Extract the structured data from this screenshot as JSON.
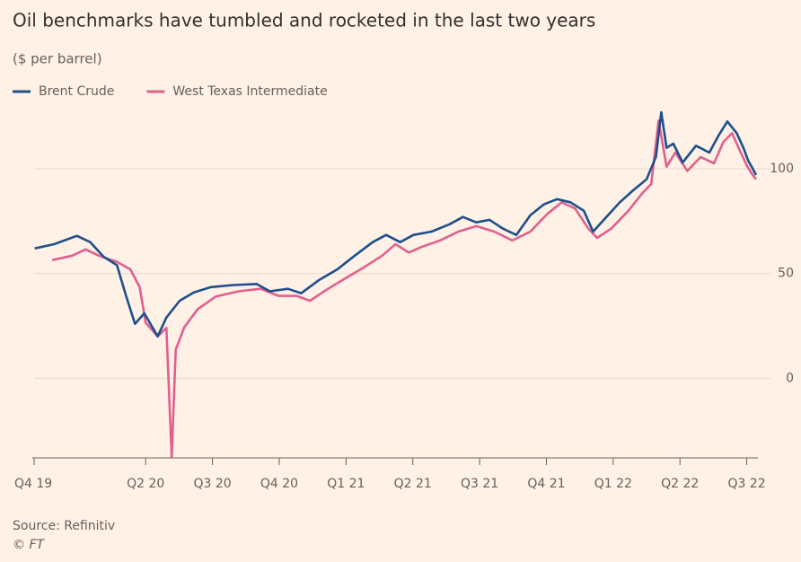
{
  "chart_data": {
    "type": "line",
    "title": "Oil benchmarks have tumbled and rocketed in the last two years",
    "subtitle": "($ per barrel)",
    "source": "Source: Refinitiv",
    "credit": "© FT",
    "xlim": [
      0.33,
      11.14
    ],
    "xticks": [
      {
        "value": 0.33,
        "label": "Q4 19"
      },
      {
        "value": 2,
        "label": "Q2 20"
      },
      {
        "value": 3,
        "label": "Q3 20"
      },
      {
        "value": 4,
        "label": "Q4 20"
      },
      {
        "value": 5,
        "label": "Q1 21"
      },
      {
        "value": 6,
        "label": "Q2 21"
      },
      {
        "value": 7,
        "label": "Q3 21"
      },
      {
        "value": 8,
        "label": "Q4 21"
      },
      {
        "value": 9,
        "label": "Q1 22"
      },
      {
        "value": 10,
        "label": "Q2 22"
      },
      {
        "value": 11,
        "label": "Q3 22"
      }
    ],
    "ylim": [
      -38,
      130
    ],
    "yticks": [
      0,
      50,
      100
    ],
    "grid": true,
    "series": [
      {
        "name": "Brent Crude",
        "color": "#1e4f8c",
        "x": [
          0.34,
          0.63,
          0.97,
          1.17,
          1.37,
          1.57,
          1.71,
          1.84,
          1.98,
          2.18,
          2.31,
          2.51,
          2.72,
          2.98,
          3.32,
          3.66,
          3.86,
          4.13,
          4.33,
          4.6,
          4.87,
          5.13,
          5.4,
          5.6,
          5.81,
          6.01,
          6.28,
          6.55,
          6.75,
          6.95,
          7.15,
          7.35,
          7.55,
          7.76,
          7.96,
          8.16,
          8.36,
          8.56,
          8.7,
          8.86,
          9.1,
          9.3,
          9.5,
          9.64,
          9.72,
          9.8,
          9.9,
          10.04,
          10.24,
          10.44,
          10.58,
          10.71,
          10.85,
          10.95,
          11.02,
          11.09,
          11.14
        ],
        "values": [
          62,
          64,
          68,
          65,
          58,
          54,
          39,
          26,
          31,
          20,
          29,
          37,
          41,
          43.5,
          44.5,
          45,
          41.5,
          42.7,
          40.6,
          47,
          52,
          58.5,
          65,
          68.4,
          65,
          68.4,
          70,
          73.5,
          77,
          74.4,
          75.6,
          71.4,
          68.4,
          77.8,
          83,
          85.5,
          84,
          80,
          70,
          75.6,
          84,
          89.7,
          95,
          105.6,
          127,
          110,
          112,
          103,
          111,
          107.7,
          116,
          122.6,
          117,
          110,
          104,
          100,
          97
        ]
      },
      {
        "name": "West Texas Intermediate",
        "color": "#e0608f",
        "x": [
          0.6,
          0.9,
          1.1,
          1.3,
          1.57,
          1.77,
          1.91,
          2.0,
          2.18,
          2.31,
          2.39,
          2.45,
          2.58,
          2.78,
          3.05,
          3.39,
          3.72,
          3.99,
          4.26,
          4.46,
          4.73,
          5.0,
          5.27,
          5.54,
          5.74,
          5.94,
          6.14,
          6.41,
          6.68,
          6.95,
          7.22,
          7.49,
          7.76,
          8.02,
          8.23,
          8.43,
          8.63,
          8.76,
          8.97,
          9.23,
          9.44,
          9.57,
          9.68,
          9.8,
          9.93,
          10.11,
          10.31,
          10.51,
          10.65,
          10.78,
          10.91,
          11.01,
          11.09,
          11.14
        ],
        "values": [
          56.4,
          58.5,
          61.5,
          58.5,
          55.6,
          52,
          43.6,
          26.5,
          20,
          24,
          -37.6,
          13.7,
          24.4,
          33,
          39,
          41.5,
          42.7,
          39.3,
          39.3,
          37,
          42.7,
          47.9,
          53,
          58.5,
          64,
          60,
          62.8,
          65.8,
          70,
          72.6,
          70,
          65.8,
          70,
          78.6,
          84,
          81,
          71.4,
          67,
          71.4,
          80,
          88.5,
          92.7,
          123,
          101,
          107.7,
          99,
          105.6,
          102.6,
          112.8,
          117,
          107.7,
          101,
          97,
          95
        ]
      }
    ]
  }
}
